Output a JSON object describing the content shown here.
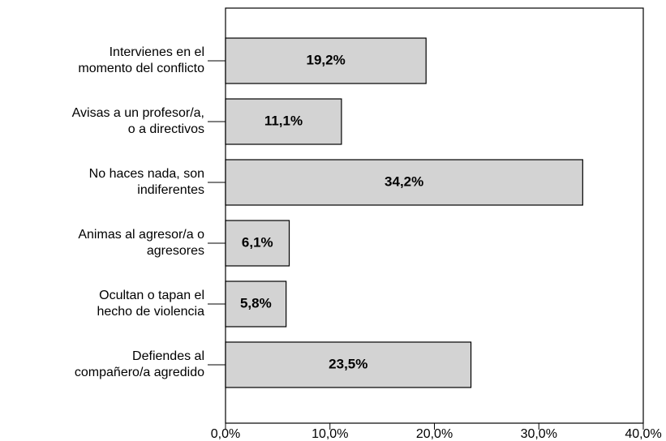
{
  "chart_data": {
    "type": "bar",
    "orientation": "horizontal",
    "categories": [
      [
        "Intervienes en el",
        "momento del conflicto"
      ],
      [
        "Avisas a un profesor/a,",
        "o a directivos"
      ],
      [
        "No haces nada, son",
        "indiferentes"
      ],
      [
        "Animas al agresor/a o",
        "agresores"
      ],
      [
        "Ocultan o tapan el",
        "hecho de violencia"
      ],
      [
        "Defiendes al",
        "compañero/a agredido"
      ]
    ],
    "values": [
      19.2,
      11.1,
      34.2,
      6.1,
      5.8,
      23.5
    ],
    "value_labels": [
      "19,2%",
      "11,1%",
      "34,2%",
      "6,1%",
      "5,8%",
      "23,5%"
    ],
    "color": "#d3d3d3",
    "xlim": [
      0,
      40
    ],
    "xticks": [
      {
        "value": 0,
        "label": "0,0%"
      },
      {
        "value": 10,
        "label": "10,0%"
      },
      {
        "value": 20,
        "label": "20,0%"
      },
      {
        "value": 30,
        "label": "30,0%"
      },
      {
        "value": 40,
        "label": "40,0%"
      }
    ]
  }
}
